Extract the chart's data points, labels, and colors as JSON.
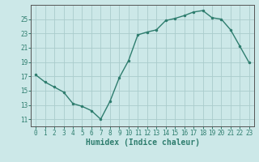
{
  "x": [
    0,
    1,
    2,
    3,
    4,
    5,
    6,
    7,
    8,
    9,
    10,
    11,
    12,
    13,
    14,
    15,
    16,
    17,
    18,
    19,
    20,
    21,
    22,
    23
  ],
  "y": [
    17.2,
    16.2,
    15.5,
    14.8,
    13.2,
    12.8,
    12.2,
    11.0,
    13.5,
    16.8,
    19.2,
    22.8,
    23.2,
    23.5,
    24.8,
    25.1,
    25.5,
    26.0,
    26.2,
    25.2,
    25.0,
    23.5,
    21.2,
    18.9
  ],
  "line_color": "#2e7d6e",
  "marker": ".",
  "markersize": 3,
  "linewidth": 1.0,
  "bg_color": "#cce8e8",
  "grid_color": "#aacccc",
  "xlabel": "Humidex (Indice chaleur)",
  "xlim": [
    -0.5,
    23.5
  ],
  "ylim": [
    10.0,
    27.0
  ],
  "yticks": [
    11,
    13,
    15,
    17,
    19,
    21,
    23,
    25
  ],
  "xticks": [
    0,
    1,
    2,
    3,
    4,
    5,
    6,
    7,
    8,
    9,
    10,
    11,
    12,
    13,
    14,
    15,
    16,
    17,
    18,
    19,
    20,
    21,
    22,
    23
  ],
  "tick_fontsize": 5.5,
  "xlabel_fontsize": 7.0,
  "axis_color": "#2e7d6e",
  "spine_color": "#555555"
}
